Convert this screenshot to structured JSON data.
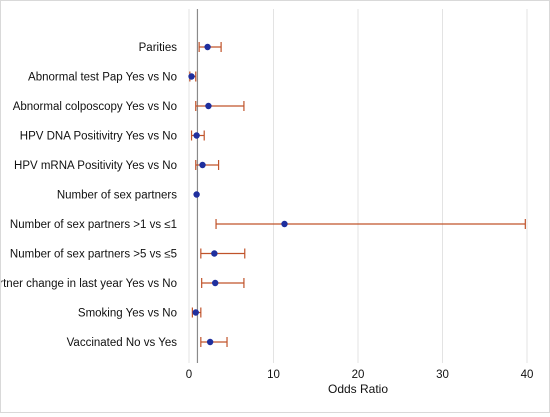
{
  "chart_data": {
    "type": "forest",
    "title": "",
    "xlabel": "Odds Ratio",
    "ylabel": "",
    "xlim": [
      0,
      40
    ],
    "xticks": [
      0,
      10,
      20,
      30,
      40
    ],
    "reference_line": 1,
    "grid": "vertical",
    "colors": {
      "point": "#1f2f9e",
      "ci": "#c0532a",
      "reference": "#8a8a8a",
      "grid": "#e3e3e3"
    },
    "rows": [
      {
        "label": "Parities",
        "or": 2.2,
        "lower": 1.2,
        "upper": 3.8
      },
      {
        "label": "Abnormal test Pap Yes vs No",
        "or": 0.3,
        "lower": 0.1,
        "upper": 0.8
      },
      {
        "label": "Abnormal colposcopy Yes vs No",
        "or": 2.3,
        "lower": 0.8,
        "upper": 6.5
      },
      {
        "label": "HPV DNA Positivitry Yes vs No",
        "or": 0.9,
        "lower": 0.3,
        "upper": 1.8
      },
      {
        "label": "HPV mRNA Positivity Yes vs No",
        "or": 1.6,
        "lower": 0.8,
        "upper": 3.5
      },
      {
        "label": "Number of sex partners",
        "or": 0.9,
        "lower": 0.9,
        "upper": 0.9
      },
      {
        "label": "Number of sex partners >1 vs ≤1",
        "or": 11.3,
        "lower": 3.2,
        "upper": 39.8
      },
      {
        "label": "Number of sex partners >5 vs ≤5",
        "or": 3.0,
        "lower": 1.4,
        "upper": 6.6
      },
      {
        "label": "Partner change in last year Yes vs No",
        "or": 3.1,
        "lower": 1.5,
        "upper": 6.5
      },
      {
        "label": "Smoking Yes vs No",
        "or": 0.8,
        "lower": 0.4,
        "upper": 1.4
      },
      {
        "label": "Vaccinated No vs Yes",
        "or": 2.5,
        "lower": 1.4,
        "upper": 4.5
      }
    ]
  }
}
